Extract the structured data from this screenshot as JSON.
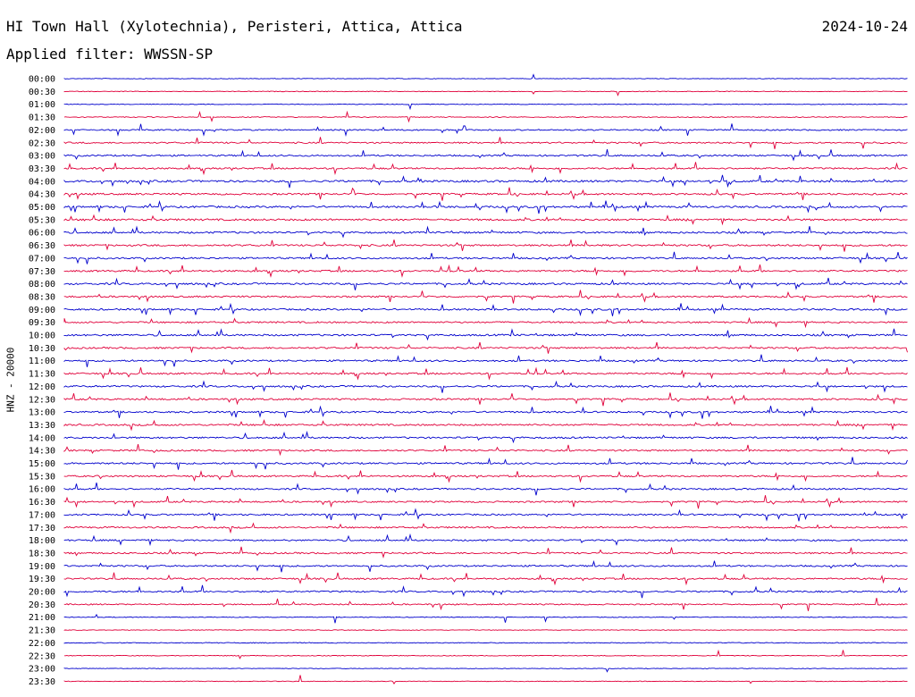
{
  "header": {
    "station_title": "HI Town Hall (Xylotechnia), Peristeri, Attica, Attica",
    "date": "2024-10-24",
    "filter_label": "Applied filter: WWSSN-SP"
  },
  "axis": {
    "ylabel": "HNZ - 20000"
  },
  "chart_data": {
    "type": "line",
    "title": "HI Town Hall (Xylotechnia), Peristeri, Attica, Attica",
    "date": "2024-10-24",
    "filter": "WWSSN-SP",
    "ylabel": "HNZ - 20000",
    "row_interval_minutes": 30,
    "colors": {
      "even_rows": "#0000cc",
      "odd_rows": "#e0003a"
    },
    "row_labels": [
      "00:00",
      "00:30",
      "01:00",
      "01:30",
      "02:00",
      "02:30",
      "03:00",
      "03:30",
      "04:00",
      "04:30",
      "05:00",
      "05:30",
      "06:00",
      "06:30",
      "07:00",
      "07:30",
      "08:00",
      "08:30",
      "09:00",
      "09:30",
      "10:00",
      "10:30",
      "11:00",
      "11:30",
      "12:00",
      "12:30",
      "13:00",
      "13:30",
      "14:00",
      "14:30",
      "15:00",
      "15:30",
      "16:00",
      "16:30",
      "17:00",
      "17:30",
      "18:00",
      "18:30",
      "19:00",
      "19:30",
      "20:00",
      "20:30",
      "21:00",
      "21:30",
      "22:00",
      "22:30",
      "23:00",
      "23:30"
    ],
    "activity_level": [
      0.05,
      0.05,
      0.05,
      0.15,
      0.35,
      0.45,
      0.5,
      0.5,
      0.7,
      0.6,
      0.65,
      0.65,
      0.6,
      0.6,
      0.55,
      0.55,
      0.6,
      0.55,
      0.55,
      0.5,
      0.6,
      0.55,
      0.55,
      0.55,
      0.55,
      0.55,
      0.55,
      0.55,
      0.55,
      0.5,
      0.55,
      0.5,
      0.5,
      0.5,
      0.5,
      0.5,
      0.5,
      0.5,
      0.5,
      0.5,
      0.5,
      0.35,
      0.1,
      0.05,
      0.15,
      0.08,
      0.05,
      0.05
    ],
    "x_range_minutes": [
      0,
      30
    ],
    "grid": false,
    "legend": "none"
  }
}
